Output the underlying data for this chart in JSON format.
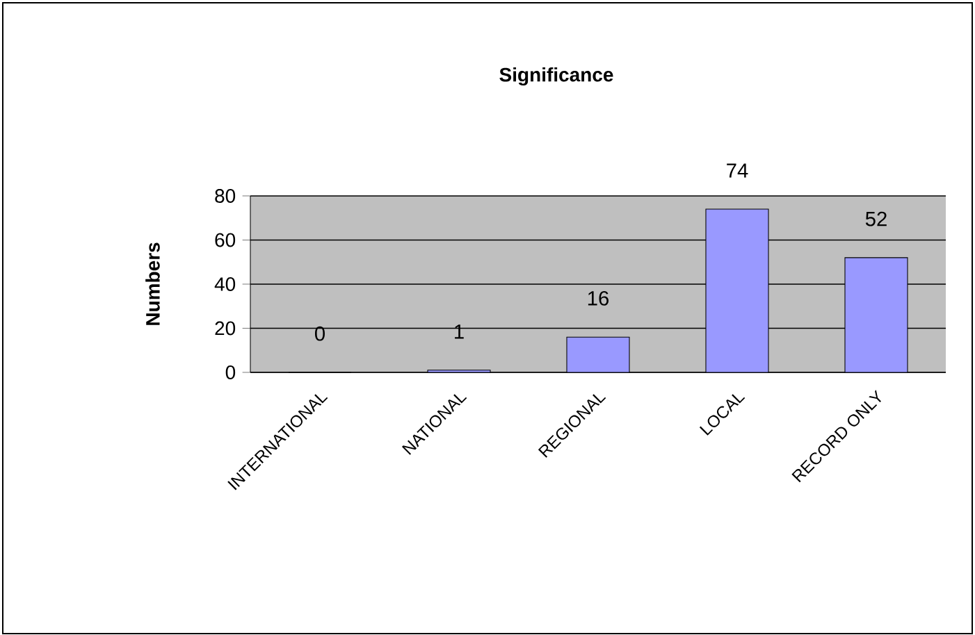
{
  "chart_data": {
    "type": "bar",
    "title": "Significance",
    "ylabel": "Numbers",
    "categories": [
      "INTERNATIONAL",
      "NATIONAL",
      "REGIONAL",
      "LOCAL",
      "RECORD ONLY"
    ],
    "values": [
      0,
      1,
      16,
      74,
      52
    ],
    "color": "#9999ff",
    "ylim": [
      0,
      80
    ],
    "yticks": [
      0,
      20,
      40,
      60,
      80
    ],
    "grid": "y",
    "data_labels": true
  }
}
